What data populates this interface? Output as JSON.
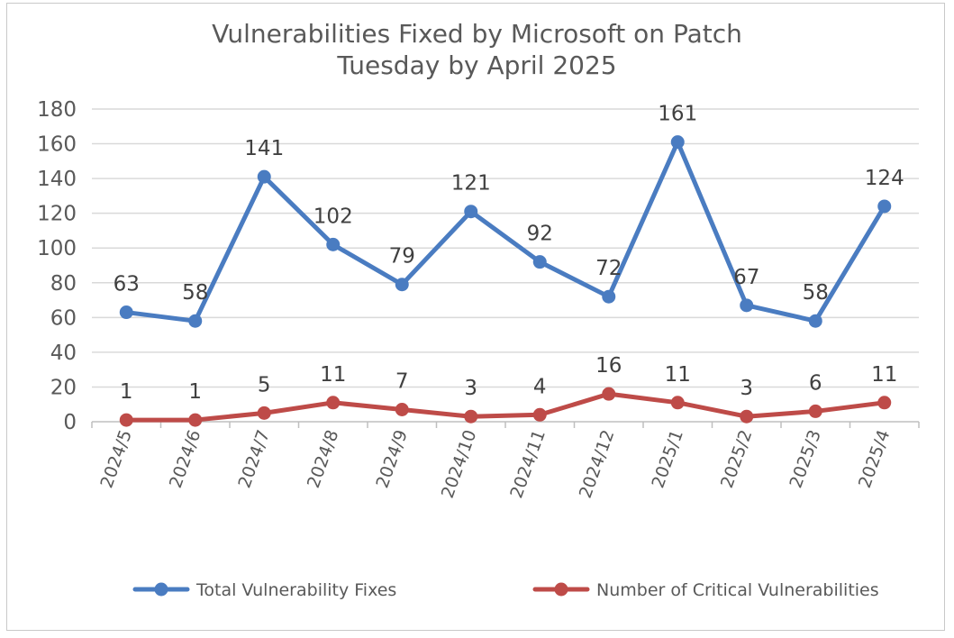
{
  "chart_data": {
    "type": "line",
    "title_line1": "Vulnerabilities Fixed by Microsoft on Patch",
    "title_line2": "Tuesday by April 2025",
    "categories": [
      "2024/5",
      "2024/6",
      "2024/7",
      "2024/8",
      "2024/9",
      "2024/10",
      "2024/11",
      "2024/12",
      "2025/1",
      "2025/2",
      "2025/3",
      "2025/4"
    ],
    "series": [
      {
        "name": "Total Vulnerability Fixes",
        "color": "#4a7cc1",
        "values": [
          63,
          58,
          141,
          102,
          79,
          121,
          92,
          72,
          161,
          67,
          58,
          124
        ]
      },
      {
        "name": "Number of Critical Vulnerabilities",
        "color": "#be4b48",
        "values": [
          1,
          1,
          5,
          11,
          7,
          3,
          4,
          16,
          11,
          3,
          6,
          11
        ]
      }
    ],
    "ylim": [
      0,
      180
    ],
    "yticks": [
      0,
      20,
      40,
      60,
      80,
      100,
      120,
      140,
      160,
      180
    ],
    "grid": true,
    "legend_position": "bottom"
  }
}
